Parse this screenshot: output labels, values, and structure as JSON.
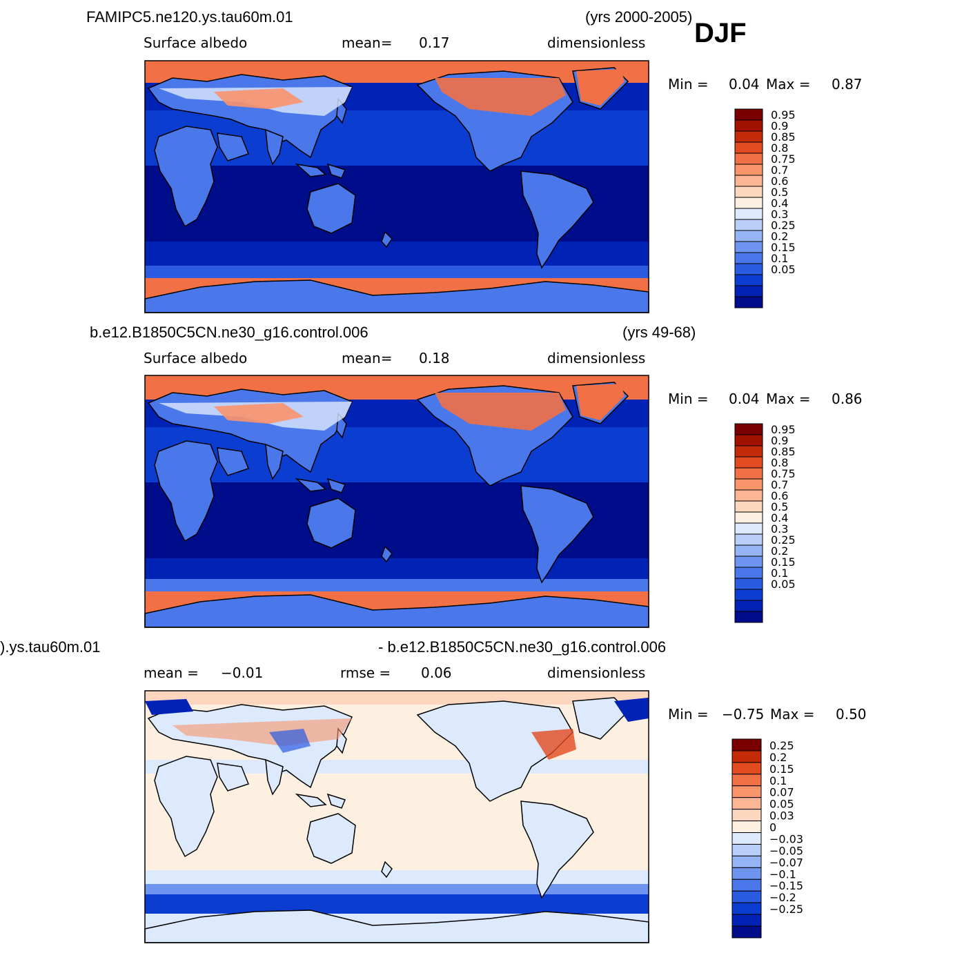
{
  "season_label": "DJF",
  "colors": {
    "albedo": [
      "#000d8a",
      "#0022b5",
      "#0a3dd0",
      "#2a5be0",
      "#4a78ea",
      "#6e96f0",
      "#94b4f5",
      "#b9cff9",
      "#dde9fc",
      "#fdf0e1",
      "#fdd6bf",
      "#fcb696",
      "#f9946b",
      "#f27046",
      "#e24a1f",
      "#c42b08",
      "#a11100",
      "#7a0000"
    ],
    "diff": [
      "#000d8a",
      "#0022b5",
      "#0a3dd0",
      "#2a5be0",
      "#4a78ea",
      "#6e96f0",
      "#94b4f5",
      "#b9cff9",
      "#dde9fc",
      "#fdf0e1",
      "#fdd6bf",
      "#fcb696",
      "#f9946b",
      "#f27046",
      "#e24a1f",
      "#c42b08",
      "#7a0000"
    ]
  },
  "chart_data": [
    {
      "type": "heatmap",
      "case": "FAMIPC5.ne120.ys.tau60m.01",
      "years": "(yrs 2000-2005)",
      "variable": "Surface albedo",
      "stat_label": "mean=",
      "stat_value": "0.17",
      "units": "dimensionless",
      "min_label": "Min =",
      "min": "0.04",
      "max_label": "Max =",
      "max": "0.87",
      "levels": [
        "0.95",
        "0.9",
        "0.85",
        "0.8",
        "0.75",
        "0.7",
        "0.6",
        "0.5",
        "0.4",
        "0.3",
        "0.25",
        "0.2",
        "0.15",
        "0.1",
        "0.05"
      ],
      "palette": "albedo"
    },
    {
      "type": "heatmap",
      "case": "b.e12.B1850C5CN.ne30_g16.control.006",
      "years": "(yrs 49-68)",
      "variable": "Surface albedo",
      "stat_label": "mean=",
      "stat_value": "0.18",
      "units": "dimensionless",
      "min_label": "Min =",
      "min": "0.04",
      "max_label": "Max =",
      "max": "0.86",
      "levels": [
        "0.95",
        "0.9",
        "0.85",
        "0.8",
        "0.75",
        "0.7",
        "0.6",
        "0.5",
        "0.4",
        "0.3",
        "0.25",
        "0.2",
        "0.15",
        "0.1",
        "0.05"
      ],
      "palette": "albedo"
    },
    {
      "type": "heatmap",
      "case": ").ys.tau60m.01",
      "case_right": "- b.e12.B1850C5CN.ne30_g16.control.006",
      "stat_label": "mean =",
      "stat_value": "−0.01",
      "rmse_label": "rmse =",
      "rmse_value": "0.06",
      "units": "dimensionless",
      "min_label": "Min =",
      "min": "−0.75",
      "max_label": "Max =",
      "max": "0.50",
      "levels": [
        "0.25",
        "0.2",
        "0.15",
        "0.1",
        "0.07",
        "0.05",
        "0.03",
        "0",
        "−0.03",
        "−0.05",
        "−0.07",
        "−0.1",
        "−0.15",
        "−0.2",
        "−0.25"
      ],
      "palette": "diff"
    }
  ]
}
